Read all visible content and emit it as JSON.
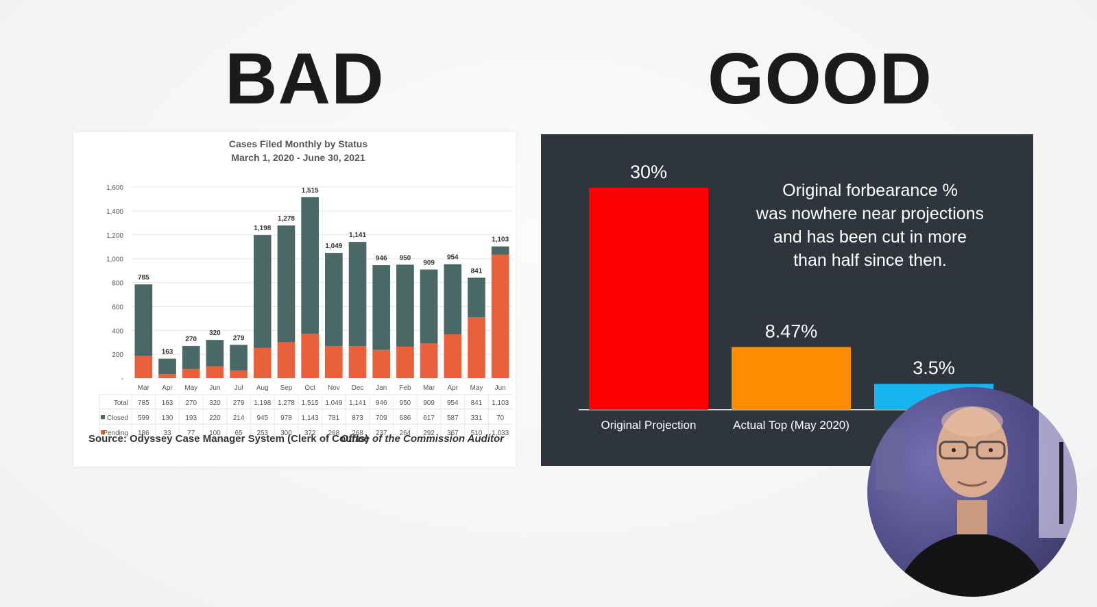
{
  "headings": {
    "bad": "BAD",
    "good": "GOOD"
  },
  "colors": {
    "closed": "#4a6866",
    "pending": "#e8603c",
    "bad_text": "#4a4a4a",
    "good_bg": "#2e353d",
    "bar_red": "#ff0000",
    "bar_orange": "#ff8c00",
    "bar_blue": "#18b4f0"
  },
  "bad_chart": {
    "title": "Cases Filed Monthly by Status",
    "subtitle": "March 1, 2020 - June 30, 2021",
    "source": "Source: Odyssey Case Manager System (Clerk of Courts)",
    "credit": "Office of the Commission Auditor",
    "table_labels": {
      "total": "Total",
      "closed": "Closed",
      "pending": "Pending"
    }
  },
  "good_chart": {
    "annotation_lines": [
      "Original forbearance %",
      "was nowhere near projections",
      "and has been cut in more",
      "than half since then."
    ]
  },
  "chart_data": [
    {
      "type": "bar",
      "stacked": true,
      "title": "Cases Filed Monthly by Status",
      "subtitle": "March 1, 2020 - June 30, 2021",
      "categories": [
        "Mar",
        "Apr",
        "May",
        "Jun",
        "Jul",
        "Aug",
        "Sep",
        "Oct",
        "Nov",
        "Dec",
        "Jan",
        "Feb",
        "Mar",
        "Apr",
        "May",
        "Jun"
      ],
      "series": [
        {
          "name": "Pending",
          "values": [
            186,
            33,
            77,
            100,
            65,
            253,
            300,
            372,
            268,
            268,
            237,
            264,
            292,
            367,
            510,
            1033
          ]
        },
        {
          "name": "Closed",
          "values": [
            599,
            130,
            193,
            220,
            214,
            945,
            978,
            1143,
            781,
            873,
            709,
            686,
            617,
            587,
            331,
            70
          ]
        }
      ],
      "totals": [
        785,
        163,
        270,
        320,
        279,
        1198,
        1278,
        1515,
        1049,
        1141,
        946,
        950,
        909,
        954,
        841,
        1103
      ],
      "yticks": [
        "-",
        "200",
        "400",
        "600",
        "800",
        "1,000",
        "1,200",
        "1,400",
        "1,600"
      ],
      "ylim": [
        0,
        1600
      ],
      "grid": true,
      "legend": "data-table"
    },
    {
      "type": "bar",
      "categories": [
        "Original Projection",
        "Actual Top (May 2020)",
        ""
      ],
      "values": [
        30,
        8.47,
        3.5
      ],
      "data_labels": [
        "30%",
        "8.47%",
        "3.5%"
      ],
      "ylim": [
        0,
        30
      ],
      "grid": false
    }
  ]
}
